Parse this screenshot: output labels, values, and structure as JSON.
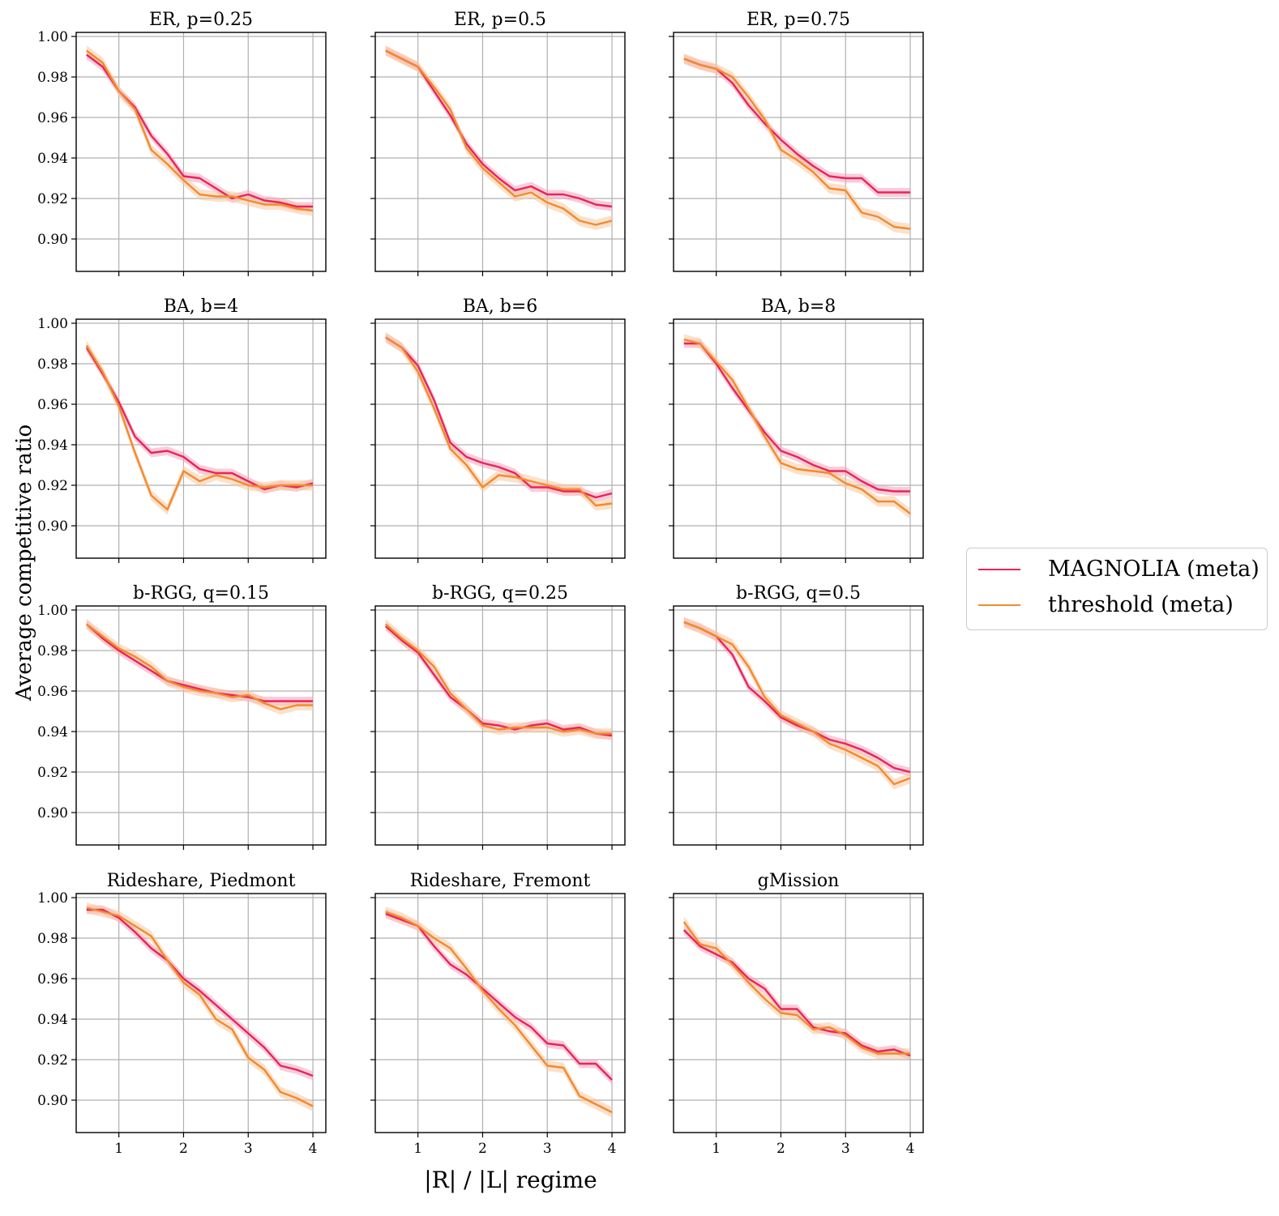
{
  "figure": {
    "ylabel": "Average competitive ratio",
    "xlabel": "|R| / |L| regime"
  },
  "legend": {
    "items": [
      {
        "label": "MAGNOLIA (meta)",
        "color": "#e8245a"
      },
      {
        "label": "threshold (meta)",
        "color": "#f28a2e"
      }
    ]
  },
  "colors": {
    "magnolia": "#e8245a",
    "magnolia_band": "#f4a3bd",
    "threshold": "#f28a2e",
    "threshold_band": "#f8c9a0",
    "grid": "#b0b0b0"
  },
  "chart_data": [
    {
      "type": "line",
      "title": "ER, p=0.25",
      "x": [
        0.5,
        0.75,
        1.0,
        1.25,
        1.5,
        1.75,
        2.0,
        2.25,
        2.5,
        2.75,
        3.0,
        3.25,
        3.5,
        3.75,
        4.0
      ],
      "xlim": [
        0.34,
        4.2
      ],
      "ylim": [
        0.884,
        1.002
      ],
      "xticks": [
        "1",
        "2",
        "3",
        "4"
      ],
      "yticks": [
        "0.90",
        "0.92",
        "0.94",
        "0.96",
        "0.98",
        "1.00"
      ],
      "grid": true,
      "series": [
        {
          "name": "MAGNOLIA (meta)",
          "values": [
            0.991,
            0.985,
            0.973,
            0.965,
            0.951,
            0.942,
            0.931,
            0.93,
            0.925,
            0.92,
            0.922,
            0.919,
            0.918,
            0.916,
            0.916
          ]
        },
        {
          "name": "threshold (meta)",
          "values": [
            0.993,
            0.987,
            0.973,
            0.964,
            0.944,
            0.937,
            0.929,
            0.922,
            0.921,
            0.921,
            0.919,
            0.917,
            0.917,
            0.915,
            0.914
          ]
        }
      ]
    },
    {
      "type": "line",
      "title": "ER, p=0.5",
      "x": [
        0.5,
        0.75,
        1.0,
        1.25,
        1.5,
        1.75,
        2.0,
        2.25,
        2.5,
        2.75,
        3.0,
        3.25,
        3.5,
        3.75,
        4.0
      ],
      "xlim": [
        0.34,
        4.2
      ],
      "ylim": [
        0.884,
        1.002
      ],
      "xticks": [
        "1",
        "2",
        "3",
        "4"
      ],
      "yticks": [
        "0.90",
        "0.92",
        "0.94",
        "0.96",
        "0.98",
        "1.00"
      ],
      "grid": true,
      "series": [
        {
          "name": "MAGNOLIA (meta)",
          "values": [
            0.993,
            0.989,
            0.985,
            0.973,
            0.961,
            0.947,
            0.937,
            0.93,
            0.924,
            0.926,
            0.922,
            0.922,
            0.92,
            0.917,
            0.916
          ]
        },
        {
          "name": "threshold (meta)",
          "values": [
            0.993,
            0.989,
            0.985,
            0.975,
            0.964,
            0.945,
            0.935,
            0.928,
            0.921,
            0.923,
            0.918,
            0.915,
            0.909,
            0.907,
            0.909
          ]
        }
      ]
    },
    {
      "type": "line",
      "title": "ER, p=0.75",
      "x": [
        0.5,
        0.75,
        1.0,
        1.25,
        1.5,
        1.75,
        2.0,
        2.25,
        2.5,
        2.75,
        3.0,
        3.25,
        3.5,
        3.75,
        4.0
      ],
      "xlim": [
        0.34,
        4.2
      ],
      "ylim": [
        0.884,
        1.002
      ],
      "xticks": [
        "1",
        "2",
        "3",
        "4"
      ],
      "yticks": [
        "0.90",
        "0.92",
        "0.94",
        "0.96",
        "0.98",
        "1.00"
      ],
      "grid": true,
      "series": [
        {
          "name": "MAGNOLIA (meta)",
          "values": [
            0.989,
            0.986,
            0.984,
            0.977,
            0.966,
            0.957,
            0.949,
            0.942,
            0.936,
            0.931,
            0.93,
            0.93,
            0.923,
            0.923,
            0.923
          ]
        },
        {
          "name": "threshold (meta)",
          "values": [
            0.989,
            0.986,
            0.984,
            0.98,
            0.97,
            0.959,
            0.944,
            0.939,
            0.933,
            0.925,
            0.924,
            0.913,
            0.911,
            0.906,
            0.905
          ]
        }
      ]
    },
    {
      "type": "line",
      "title": "BA, b=4",
      "x": [
        0.5,
        0.75,
        1.0,
        1.25,
        1.5,
        1.75,
        2.0,
        2.25,
        2.5,
        2.75,
        3.0,
        3.25,
        3.5,
        3.75,
        4.0
      ],
      "xlim": [
        0.34,
        4.2
      ],
      "ylim": [
        0.884,
        1.002
      ],
      "xticks": [
        "1",
        "2",
        "3",
        "4"
      ],
      "yticks": [
        "0.90",
        "0.92",
        "0.94",
        "0.96",
        "0.98",
        "1.00"
      ],
      "grid": true,
      "series": [
        {
          "name": "MAGNOLIA (meta)",
          "values": [
            0.988,
            0.975,
            0.961,
            0.944,
            0.936,
            0.937,
            0.934,
            0.928,
            0.926,
            0.926,
            0.922,
            0.918,
            0.92,
            0.919,
            0.921
          ]
        },
        {
          "name": "threshold (meta)",
          "values": [
            0.989,
            0.976,
            0.959,
            0.936,
            0.915,
            0.908,
            0.927,
            0.922,
            0.925,
            0.923,
            0.92,
            0.919,
            0.92,
            0.92,
            0.92
          ]
        }
      ]
    },
    {
      "type": "line",
      "title": "BA, b=6",
      "x": [
        0.5,
        0.75,
        1.0,
        1.25,
        1.5,
        1.75,
        2.0,
        2.25,
        2.5,
        2.75,
        3.0,
        3.25,
        3.5,
        3.75,
        4.0
      ],
      "xlim": [
        0.34,
        4.2
      ],
      "ylim": [
        0.884,
        1.002
      ],
      "xticks": [
        "1",
        "2",
        "3",
        "4"
      ],
      "yticks": [
        "0.90",
        "0.92",
        "0.94",
        "0.96",
        "0.98",
        "1.00"
      ],
      "grid": true,
      "series": [
        {
          "name": "MAGNOLIA (meta)",
          "values": [
            0.993,
            0.988,
            0.979,
            0.962,
            0.941,
            0.934,
            0.931,
            0.929,
            0.926,
            0.919,
            0.919,
            0.917,
            0.917,
            0.914,
            0.916
          ]
        },
        {
          "name": "threshold (meta)",
          "values": [
            0.993,
            0.988,
            0.976,
            0.958,
            0.938,
            0.93,
            0.919,
            0.925,
            0.924,
            0.922,
            0.92,
            0.918,
            0.918,
            0.91,
            0.911
          ]
        }
      ]
    },
    {
      "type": "line",
      "title": "BA, b=8",
      "x": [
        0.5,
        0.75,
        1.0,
        1.25,
        1.5,
        1.75,
        2.0,
        2.25,
        2.5,
        2.75,
        3.0,
        3.25,
        3.5,
        3.75,
        4.0
      ],
      "xlim": [
        0.34,
        4.2
      ],
      "ylim": [
        0.884,
        1.002
      ],
      "xticks": [
        "1",
        "2",
        "3",
        "4"
      ],
      "yticks": [
        "0.90",
        "0.92",
        "0.94",
        "0.96",
        "0.98",
        "1.00"
      ],
      "grid": true,
      "series": [
        {
          "name": "MAGNOLIA (meta)",
          "values": [
            0.99,
            0.99,
            0.98,
            0.968,
            0.957,
            0.946,
            0.937,
            0.934,
            0.93,
            0.927,
            0.927,
            0.922,
            0.918,
            0.917,
            0.917
          ]
        },
        {
          "name": "threshold (meta)",
          "values": [
            0.992,
            0.99,
            0.981,
            0.972,
            0.958,
            0.944,
            0.931,
            0.928,
            0.927,
            0.926,
            0.921,
            0.918,
            0.912,
            0.912,
            0.906
          ]
        }
      ]
    },
    {
      "type": "line",
      "title": "b-RGG, q=0.15",
      "x": [
        0.5,
        0.75,
        1.0,
        1.25,
        1.5,
        1.75,
        2.0,
        2.25,
        2.5,
        2.75,
        3.0,
        3.25,
        3.5,
        3.75,
        4.0
      ],
      "xlim": [
        0.34,
        4.2
      ],
      "ylim": [
        0.884,
        1.002
      ],
      "xticks": [
        "1",
        "2",
        "3",
        "4"
      ],
      "yticks": [
        "0.90",
        "0.92",
        "0.94",
        "0.96",
        "0.98",
        "1.00"
      ],
      "grid": true,
      "series": [
        {
          "name": "MAGNOLIA (meta)",
          "values": [
            0.993,
            0.986,
            0.98,
            0.975,
            0.97,
            0.965,
            0.963,
            0.961,
            0.959,
            0.958,
            0.957,
            0.955,
            0.955,
            0.955,
            0.955
          ]
        },
        {
          "name": "threshold (meta)",
          "values": [
            0.993,
            0.987,
            0.981,
            0.977,
            0.972,
            0.965,
            0.962,
            0.96,
            0.959,
            0.957,
            0.958,
            0.954,
            0.951,
            0.953,
            0.953
          ]
        }
      ]
    },
    {
      "type": "line",
      "title": "b-RGG, q=0.25",
      "x": [
        0.5,
        0.75,
        1.0,
        1.25,
        1.5,
        1.75,
        2.0,
        2.25,
        2.5,
        2.75,
        3.0,
        3.25,
        3.5,
        3.75,
        4.0
      ],
      "xlim": [
        0.34,
        4.2
      ],
      "ylim": [
        0.884,
        1.002
      ],
      "xticks": [
        "1",
        "2",
        "3",
        "4"
      ],
      "yticks": [
        "0.90",
        "0.92",
        "0.94",
        "0.96",
        "0.98",
        "1.00"
      ],
      "grid": true,
      "series": [
        {
          "name": "MAGNOLIA (meta)",
          "values": [
            0.992,
            0.985,
            0.979,
            0.968,
            0.957,
            0.951,
            0.944,
            0.943,
            0.941,
            0.943,
            0.944,
            0.941,
            0.942,
            0.939,
            0.938
          ]
        },
        {
          "name": "threshold (meta)",
          "values": [
            0.993,
            0.986,
            0.98,
            0.972,
            0.959,
            0.951,
            0.943,
            0.941,
            0.942,
            0.942,
            0.942,
            0.94,
            0.941,
            0.939,
            0.939
          ]
        }
      ]
    },
    {
      "type": "line",
      "title": "b-RGG, q=0.5",
      "x": [
        0.5,
        0.75,
        1.0,
        1.25,
        1.5,
        1.75,
        2.0,
        2.25,
        2.5,
        2.75,
        3.0,
        3.25,
        3.5,
        3.75,
        4.0
      ],
      "xlim": [
        0.34,
        4.2
      ],
      "ylim": [
        0.884,
        1.002
      ],
      "xticks": [
        "1",
        "2",
        "3",
        "4"
      ],
      "yticks": [
        "0.90",
        "0.92",
        "0.94",
        "0.96",
        "0.98",
        "1.00"
      ],
      "grid": true,
      "series": [
        {
          "name": "MAGNOLIA (meta)",
          "values": [
            0.994,
            0.991,
            0.987,
            0.978,
            0.962,
            0.955,
            0.947,
            0.943,
            0.94,
            0.936,
            0.934,
            0.931,
            0.927,
            0.922,
            0.92
          ]
        },
        {
          "name": "threshold (meta)",
          "values": [
            0.994,
            0.991,
            0.987,
            0.983,
            0.972,
            0.957,
            0.948,
            0.944,
            0.94,
            0.934,
            0.931,
            0.927,
            0.923,
            0.914,
            0.917
          ]
        }
      ]
    },
    {
      "type": "line",
      "title": "Rideshare, Piedmont",
      "x": [
        0.5,
        0.75,
        1.0,
        1.25,
        1.5,
        1.75,
        2.0,
        2.25,
        2.5,
        2.75,
        3.0,
        3.25,
        3.5,
        3.75,
        4.0
      ],
      "xlim": [
        0.34,
        4.2
      ],
      "ylim": [
        0.884,
        1.002
      ],
      "xticks": [
        "1",
        "2",
        "3",
        "4"
      ],
      "yticks": [
        "0.90",
        "0.92",
        "0.94",
        "0.96",
        "0.98",
        "1.00"
      ],
      "grid": true,
      "series": [
        {
          "name": "MAGNOLIA (meta)",
          "values": [
            0.994,
            0.994,
            0.99,
            0.983,
            0.975,
            0.969,
            0.96,
            0.954,
            0.947,
            0.94,
            0.933,
            0.926,
            0.917,
            0.915,
            0.912
          ]
        },
        {
          "name": "threshold (meta)",
          "values": [
            0.995,
            0.993,
            0.991,
            0.986,
            0.981,
            0.969,
            0.958,
            0.952,
            0.94,
            0.935,
            0.921,
            0.915,
            0.904,
            0.901,
            0.897
          ]
        }
      ]
    },
    {
      "type": "line",
      "title": "Rideshare, Fremont",
      "x": [
        0.5,
        0.75,
        1.0,
        1.25,
        1.5,
        1.75,
        2.0,
        2.25,
        2.5,
        2.75,
        3.0,
        3.25,
        3.5,
        3.75,
        4.0
      ],
      "xlim": [
        0.34,
        4.2
      ],
      "ylim": [
        0.884,
        1.002
      ],
      "xticks": [
        "1",
        "2",
        "3",
        "4"
      ],
      "yticks": [
        "0.90",
        "0.92",
        "0.94",
        "0.96",
        "0.98",
        "1.00"
      ],
      "grid": true,
      "series": [
        {
          "name": "MAGNOLIA (meta)",
          "values": [
            0.992,
            0.989,
            0.986,
            0.976,
            0.967,
            0.962,
            0.955,
            0.948,
            0.941,
            0.936,
            0.928,
            0.927,
            0.918,
            0.918,
            0.91
          ]
        },
        {
          "name": "threshold (meta)",
          "values": [
            0.993,
            0.99,
            0.986,
            0.98,
            0.975,
            0.965,
            0.954,
            0.945,
            0.937,
            0.927,
            0.917,
            0.916,
            0.902,
            0.898,
            0.894
          ]
        }
      ]
    },
    {
      "type": "line",
      "title": "gMission",
      "x": [
        0.5,
        0.75,
        1.0,
        1.25,
        1.5,
        1.75,
        2.0,
        2.25,
        2.5,
        2.75,
        3.0,
        3.25,
        3.5,
        3.75,
        4.0
      ],
      "xlim": [
        0.34,
        4.2
      ],
      "ylim": [
        0.884,
        1.002
      ],
      "xticks": [
        "1",
        "2",
        "3",
        "4"
      ],
      "yticks": [
        "0.90",
        "0.92",
        "0.94",
        "0.96",
        "0.98",
        "1.00"
      ],
      "grid": true,
      "series": [
        {
          "name": "MAGNOLIA (meta)",
          "values": [
            0.984,
            0.976,
            0.972,
            0.968,
            0.96,
            0.955,
            0.945,
            0.945,
            0.936,
            0.934,
            0.933,
            0.927,
            0.924,
            0.925,
            0.922
          ]
        },
        {
          "name": "threshold (meta)",
          "values": [
            0.988,
            0.977,
            0.975,
            0.967,
            0.958,
            0.95,
            0.943,
            0.942,
            0.935,
            0.936,
            0.932,
            0.926,
            0.923,
            0.923,
            0.923
          ]
        }
      ]
    }
  ]
}
